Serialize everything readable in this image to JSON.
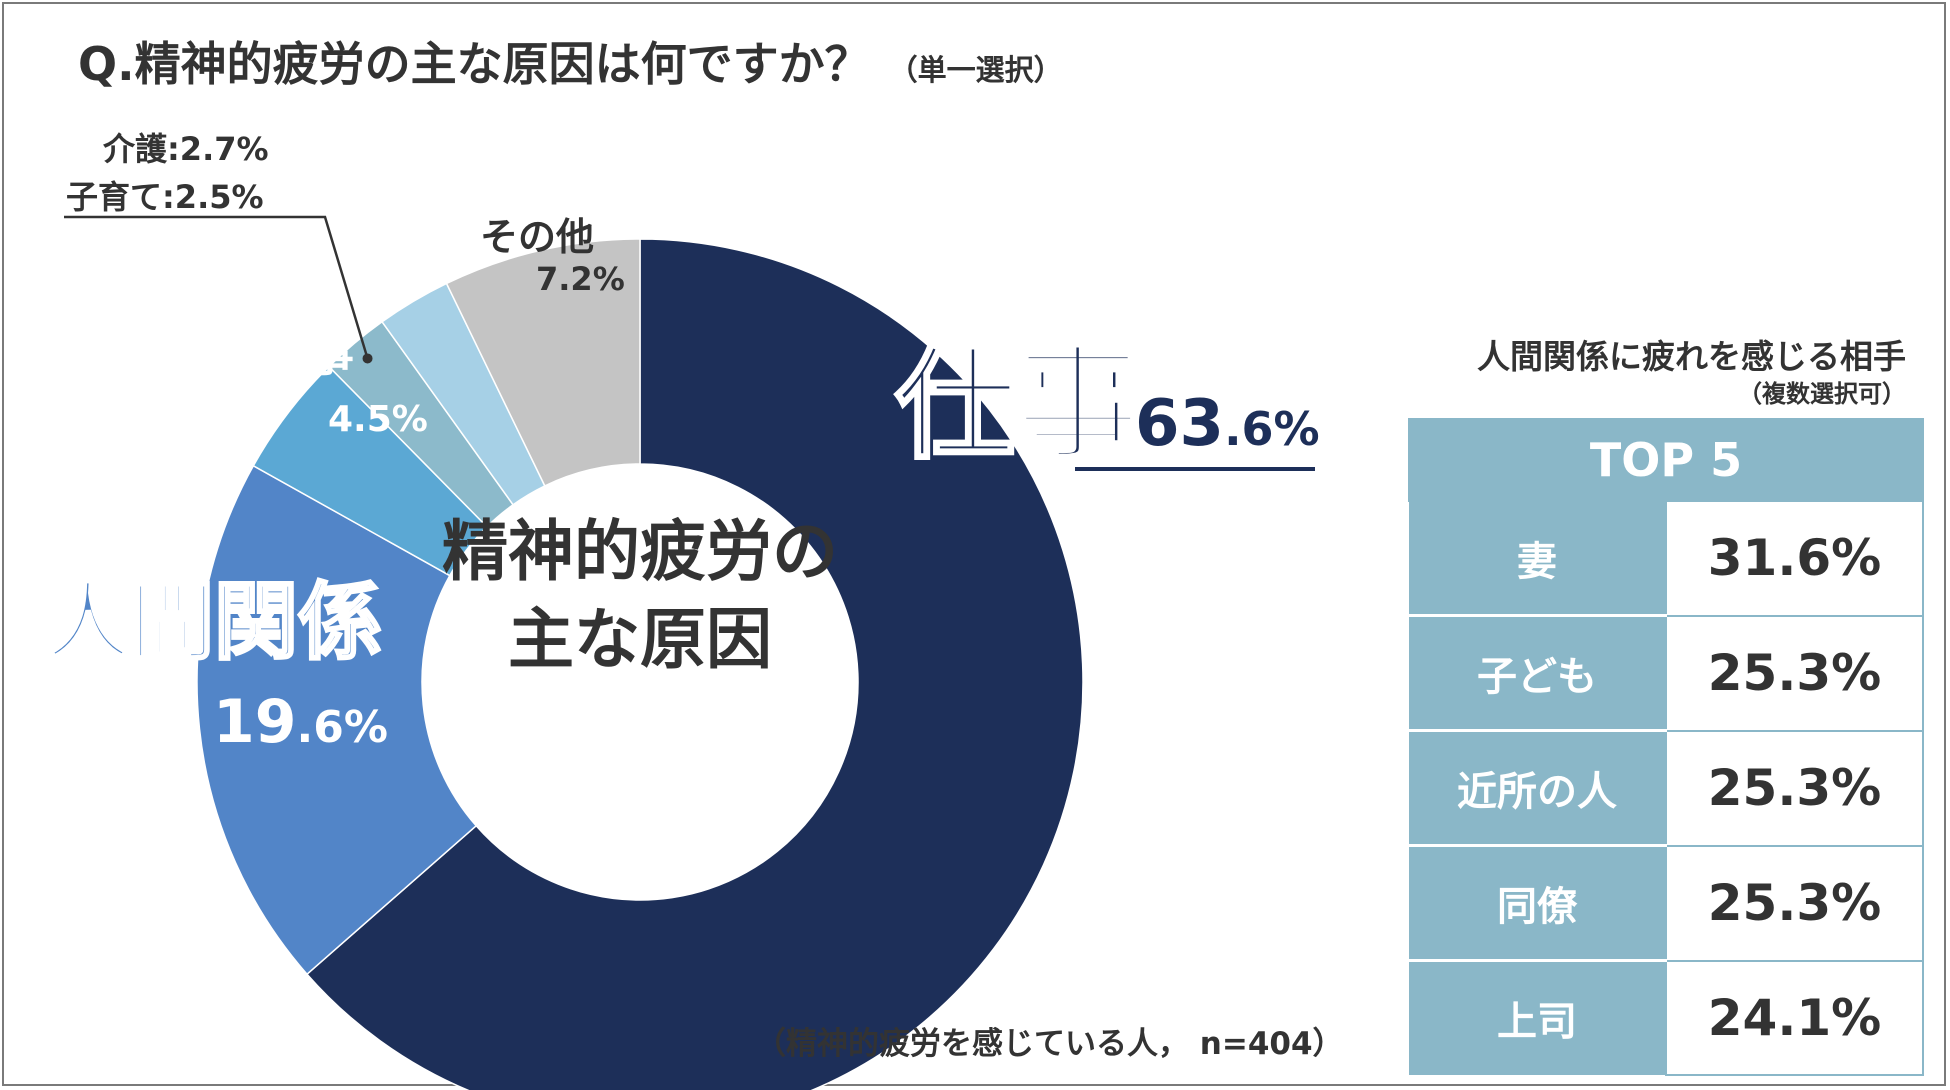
{
  "title": {
    "main": "Q.精神的疲労の主な原因は何ですか？",
    "sub": "（単一選択）"
  },
  "chart_data": {
    "type": "pie",
    "variant": "donut",
    "title": "Q.精神的疲労の主な原因は何ですか？（単一選択）",
    "center_text": [
      "精神的疲労の",
      "主な原因"
    ],
    "slices": [
      {
        "label": "仕事",
        "value": 63.6,
        "color": "#1d2f59"
      },
      {
        "label": "人間関係",
        "value": 19.6,
        "color": "#5285c8"
      },
      {
        "label": "家事",
        "value": 4.5,
        "color": "#5ba8d4"
      },
      {
        "label": "子育て",
        "value": 2.5,
        "color": "#8cbacb"
      },
      {
        "label": "介護",
        "value": 2.7,
        "color": "#a6d0e6"
      },
      {
        "label": "その他",
        "value": 7.2,
        "color": "#c4c4c4"
      }
    ],
    "labels": {
      "work": {
        "name": "仕事",
        "num": "63",
        "dec": ".6%"
      },
      "relations": {
        "name": "人間関係",
        "num": "19",
        "dec": ".6%"
      },
      "housework": {
        "name": "家事",
        "pct": "4.5%"
      },
      "other": {
        "name": "その他",
        "pct": "7.2%"
      },
      "care": "介護:2.7%",
      "childcare": "子育て:2.5%"
    }
  },
  "note": "（精神的疲労を感じている人， n=404）",
  "relations_table": {
    "title": "人間関係に疲れを感じる相手",
    "subtitle": "（複数選択可）",
    "header": "TOP 5",
    "rows": [
      {
        "label": "妻",
        "value": "31.6%"
      },
      {
        "label": "子ども",
        "value": "25.3%"
      },
      {
        "label": "近所の人",
        "value": "25.3%"
      },
      {
        "label": "同僚",
        "value": "25.3%"
      },
      {
        "label": "上司",
        "value": "24.1%"
      }
    ]
  },
  "colors": {
    "work": "#1d2f59",
    "relations": "#5285c8",
    "housework": "#5ba8d4",
    "table_accent": "#8ab7c8",
    "text": "#333333"
  }
}
